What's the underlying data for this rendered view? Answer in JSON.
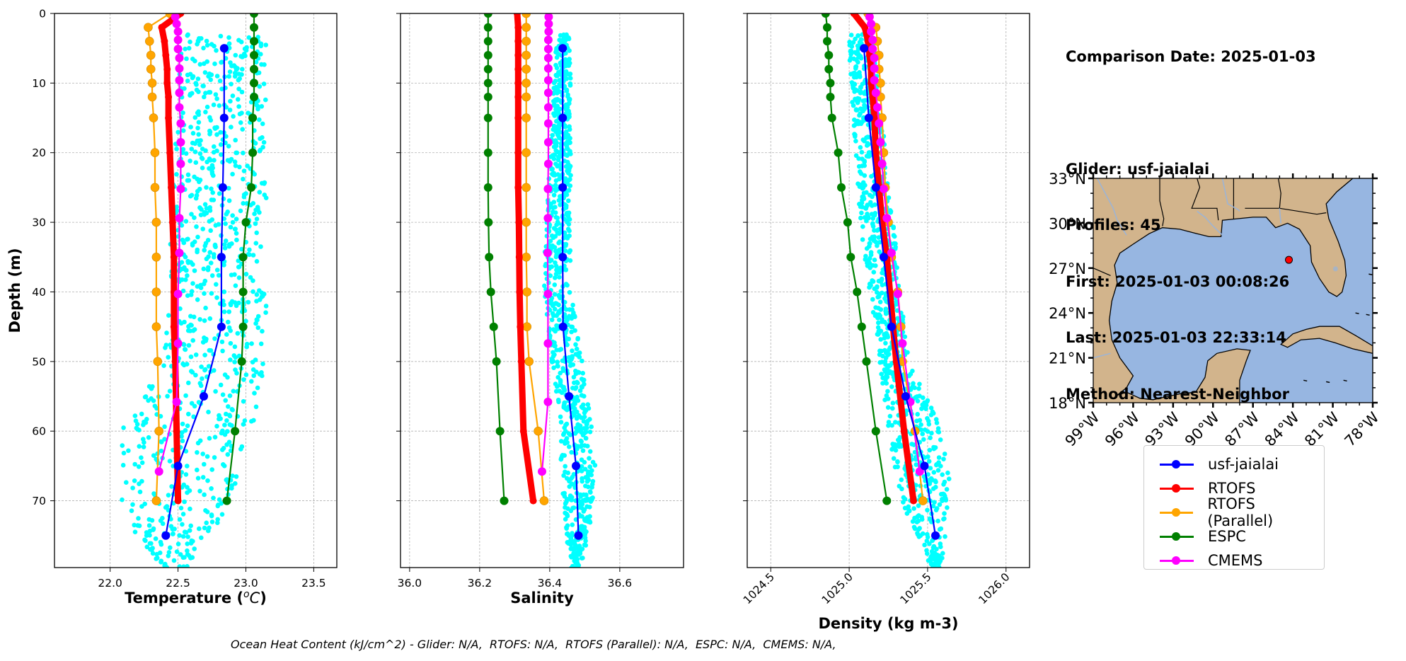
{
  "info_panel": {
    "comparison_date": "Comparison Date: 2025-01-03",
    "glider": "Glider: usf-jaialai",
    "profiles": "Profiles: 45",
    "first": "First: 2025-01-03 00:08:26",
    "last": "Last: 2025-01-03 22:33:14",
    "method": "Method: Nearest-Neighbor"
  },
  "footer": {
    "ohc_text": "Ocean Heat Content (kJ/cm^2) - Glider: N/A,  RTOFS: N/A,  RTOFS (Parallel): N/A,  ESPC: N/A,  CMEMS: N/A,"
  },
  "legend": {
    "placement": "below-map",
    "entries": [
      {
        "label": "usf-jaialai",
        "color": "#0000ff"
      },
      {
        "label": "RTOFS",
        "color": "#ff0000"
      },
      {
        "label": "RTOFS (Parallel)",
        "color": "#ffa500"
      },
      {
        "label": "ESPC",
        "color": "#008000"
      },
      {
        "label": "CMEMS",
        "color": "#ff00ff"
      }
    ]
  },
  "colors": {
    "glider_scatter": "#00ffff",
    "glider": "#0000ff",
    "rtofs": "#ff0000",
    "rtofs_parallel": "#ffa500",
    "espc": "#008000",
    "cmems": "#ff00ff",
    "land": "#d2b48c",
    "ocean": "#97b6e1",
    "grid": "#b0b0b0"
  },
  "chart_data": [
    {
      "type": "line",
      "title": "",
      "xlabel": "Temperature (°C)",
      "ylabel": "Depth (m)",
      "xlim": [
        21.59,
        23.67
      ],
      "ylim": [
        79.6,
        0
      ],
      "xticks": [
        22.0,
        22.5,
        23.0,
        23.5
      ],
      "xtick_labels": [
        "22.0",
        "22.5",
        "23.0",
        "23.5"
      ],
      "yticks": [
        0,
        10,
        20,
        30,
        40,
        50,
        60,
        70
      ],
      "ytick_labels": [
        "0",
        "10",
        "20",
        "30",
        "40",
        "50",
        "60",
        "70"
      ],
      "grid": true,
      "scatter": {
        "name": "usf-jaialai profiles",
        "xrange_by_depth": [
          [
            3,
            22.52,
            23.15
          ],
          [
            50,
            22.4,
            23.15
          ],
          [
            60,
            22.08,
            23.05
          ],
          [
            72,
            22.08,
            22.85
          ],
          [
            80,
            22.4,
            22.55
          ]
        ]
      },
      "series": [
        {
          "name": "usf-jaialai",
          "key": "glider",
          "depth": [
            5,
            15,
            25,
            35,
            45,
            55,
            65,
            75
          ],
          "values": [
            22.84,
            22.84,
            22.83,
            22.82,
            22.82,
            22.69,
            22.5,
            22.41
          ]
        },
        {
          "name": "RTOFS",
          "key": "rtofs",
          "depth": [
            0,
            2,
            4,
            6,
            8,
            10,
            12,
            15,
            20,
            25,
            30,
            35,
            40,
            45,
            50,
            60,
            70
          ],
          "values": [
            22.52,
            22.38,
            22.4,
            22.41,
            22.42,
            22.42,
            22.43,
            22.43,
            22.44,
            22.45,
            22.46,
            22.47,
            22.47,
            22.47,
            22.48,
            22.49,
            22.5
          ]
        },
        {
          "name": "RTOFS (Parallel)",
          "key": "rtofs_parallel",
          "depth": [
            0,
            2,
            4,
            6,
            8,
            10,
            12,
            15,
            20,
            25,
            30,
            35,
            40,
            45,
            50,
            60,
            70
          ],
          "values": [
            22.44,
            22.28,
            22.29,
            22.3,
            22.3,
            22.31,
            22.31,
            22.32,
            22.33,
            22.33,
            22.34,
            22.34,
            22.34,
            22.34,
            22.35,
            22.36,
            22.34
          ]
        },
        {
          "name": "ESPC",
          "key": "espc",
          "depth": [
            0,
            2,
            4,
            6,
            8,
            10,
            12,
            15,
            20,
            25,
            30,
            35,
            40,
            45,
            50,
            60,
            70
          ],
          "values": [
            23.06,
            23.06,
            23.06,
            23.06,
            23.06,
            23.06,
            23.06,
            23.05,
            23.05,
            23.04,
            23.0,
            22.98,
            22.98,
            22.98,
            22.97,
            22.92,
            22.86
          ]
        },
        {
          "name": "CMEMS",
          "key": "cmems",
          "depth": [
            0.5,
            1.5,
            2.6,
            3.8,
            5.1,
            6.4,
            7.9,
            9.6,
            11.4,
            13.5,
            15.8,
            18.5,
            21.6,
            25.2,
            29.4,
            34.4,
            40.3,
            47.4,
            55.8,
            65.8
          ],
          "values": [
            22.48,
            22.49,
            22.5,
            22.5,
            22.5,
            22.51,
            22.51,
            22.51,
            22.51,
            22.51,
            22.52,
            22.52,
            22.52,
            22.52,
            22.51,
            22.51,
            22.5,
            22.5,
            22.49,
            22.36
          ]
        }
      ]
    },
    {
      "type": "line",
      "title": "",
      "xlabel": "Salinity",
      "ylabel": "",
      "xlim": [
        35.974,
        36.782
      ],
      "ylim": [
        79.6,
        0
      ],
      "xticks": [
        36.0,
        36.2,
        36.4,
        36.6
      ],
      "xtick_labels": [
        "36.0",
        "36.2",
        "36.4",
        "36.6"
      ],
      "yticks": [
        0,
        10,
        20,
        30,
        40,
        50,
        60,
        70
      ],
      "grid": true,
      "scatter": {
        "name": "usf-jaialai profiles",
        "xrange_by_depth": [
          [
            3,
            36.42,
            36.46
          ],
          [
            40,
            36.38,
            36.46
          ],
          [
            55,
            36.42,
            36.51
          ],
          [
            65,
            36.43,
            36.53
          ],
          [
            72,
            36.44,
            36.52
          ],
          [
            80,
            36.46,
            36.49
          ]
        ]
      },
      "series": [
        {
          "name": "usf-jaialai",
          "key": "glider",
          "depth": [
            5,
            15,
            25,
            35,
            45,
            55,
            65,
            75
          ],
          "values": [
            36.437,
            36.437,
            36.437,
            36.437,
            36.438,
            36.455,
            36.475,
            36.482
          ]
        },
        {
          "name": "RTOFS",
          "key": "rtofs",
          "depth": [
            0,
            2,
            4,
            6,
            8,
            10,
            12,
            15,
            20,
            25,
            30,
            35,
            40,
            45,
            50,
            60,
            70
          ],
          "values": [
            36.307,
            36.31,
            36.31,
            36.31,
            36.31,
            36.31,
            36.31,
            36.31,
            36.31,
            36.31,
            36.312,
            36.313,
            36.314,
            36.316,
            36.319,
            36.325,
            36.353
          ]
        },
        {
          "name": "RTOFS (Parallel)",
          "key": "rtofs_parallel",
          "depth": [
            0,
            2,
            4,
            6,
            8,
            10,
            12,
            15,
            20,
            25,
            30,
            35,
            40,
            45,
            50,
            60,
            70
          ],
          "values": [
            36.333,
            36.333,
            36.333,
            36.333,
            36.333,
            36.333,
            36.333,
            36.333,
            36.333,
            36.333,
            36.333,
            36.333,
            36.335,
            36.335,
            36.341,
            36.367,
            36.384
          ]
        },
        {
          "name": "ESPC",
          "key": "espc",
          "depth": [
            0,
            2,
            4,
            6,
            8,
            10,
            12,
            15,
            20,
            25,
            30,
            35,
            40,
            45,
            50,
            60,
            70
          ],
          "values": [
            36.224,
            36.224,
            36.224,
            36.224,
            36.224,
            36.224,
            36.224,
            36.224,
            36.224,
            36.224,
            36.225,
            36.227,
            36.232,
            36.24,
            36.248,
            36.258,
            36.27
          ]
        },
        {
          "name": "CMEMS",
          "key": "cmems",
          "depth": [
            0.5,
            1.5,
            2.6,
            3.8,
            5.1,
            6.4,
            7.9,
            9.6,
            11.4,
            13.5,
            15.8,
            18.5,
            21.6,
            25.2,
            29.4,
            34.4,
            40.3,
            47.4,
            55.8,
            65.8
          ],
          "values": [
            36.397,
            36.397,
            36.397,
            36.396,
            36.396,
            36.396,
            36.396,
            36.396,
            36.396,
            36.396,
            36.396,
            36.396,
            36.396,
            36.395,
            36.395,
            36.394,
            36.395,
            36.395,
            36.395,
            36.378
          ]
        }
      ]
    },
    {
      "type": "line",
      "title": "",
      "xlabel": "Density (kg m-3)",
      "ylabel": "",
      "xlim": [
        1024.35,
        1026.15
      ],
      "ylim": [
        79.6,
        0
      ],
      "xticks": [
        1024.5,
        1025.0,
        1025.5,
        1026.0
      ],
      "xtick_labels": [
        "1024.5",
        "1025.0",
        "1025.5",
        "1026.0"
      ],
      "yticks": [
        0,
        10,
        20,
        30,
        40,
        50,
        60,
        70
      ],
      "grid": true,
      "scatter": {
        "name": "usf-jaialai profiles",
        "xrange_by_depth": [
          [
            3,
            1024.99,
            1025.15
          ],
          [
            30,
            1025.07,
            1025.28
          ],
          [
            50,
            1025.19,
            1025.38
          ],
          [
            60,
            1025.25,
            1025.6
          ],
          [
            70,
            1025.33,
            1025.66
          ],
          [
            80,
            1025.53,
            1025.58
          ]
        ]
      },
      "series": [
        {
          "name": "usf-jaialai",
          "key": "glider",
          "depth": [
            5,
            15,
            25,
            35,
            45,
            55,
            65,
            75
          ],
          "values": [
            1025.095,
            1025.125,
            1025.17,
            1025.22,
            1025.27,
            1025.36,
            1025.48,
            1025.55
          ]
        },
        {
          "name": "RTOFS",
          "key": "rtofs",
          "depth": [
            0,
            2,
            4,
            6,
            8,
            10,
            12,
            15,
            20,
            25,
            30,
            35,
            40,
            45,
            50,
            60,
            70
          ],
          "values": [
            1025.03,
            1025.1,
            1025.12,
            1025.13,
            1025.14,
            1025.14,
            1025.15,
            1025.16,
            1025.17,
            1025.19,
            1025.21,
            1025.24,
            1025.26,
            1025.28,
            1025.3,
            1025.35,
            1025.41
          ]
        },
        {
          "name": "RTOFS (Parallel)",
          "key": "rtofs_parallel",
          "depth": [
            0,
            2,
            4,
            6,
            8,
            10,
            12,
            15,
            20,
            25,
            30,
            35,
            40,
            45,
            50,
            60,
            70
          ],
          "values": [
            1025.12,
            1025.17,
            1025.18,
            1025.19,
            1025.19,
            1025.2,
            1025.2,
            1025.21,
            1025.22,
            1025.23,
            1025.25,
            1025.27,
            1025.31,
            1025.33,
            1025.34,
            1025.42,
            1025.47
          ]
        },
        {
          "name": "ESPC",
          "key": "espc",
          "depth": [
            0,
            2,
            4,
            6,
            8,
            10,
            12,
            15,
            20,
            25,
            30,
            35,
            40,
            45,
            50,
            60,
            70
          ],
          "values": [
            1024.85,
            1024.86,
            1024.86,
            1024.87,
            1024.87,
            1024.88,
            1024.88,
            1024.89,
            1024.93,
            1024.95,
            1024.99,
            1025.01,
            1025.05,
            1025.08,
            1025.11,
            1025.17,
            1025.24
          ]
        },
        {
          "name": "CMEMS",
          "key": "cmems",
          "depth": [
            0.5,
            1.5,
            2.6,
            3.8,
            5.1,
            6.4,
            7.9,
            9.6,
            11.4,
            13.5,
            15.8,
            18.5,
            21.6,
            25.2,
            29.4,
            34.4,
            40.3,
            47.4,
            55.8,
            65.8
          ],
          "values": [
            1025.13,
            1025.14,
            1025.14,
            1025.15,
            1025.15,
            1025.16,
            1025.16,
            1025.16,
            1025.17,
            1025.18,
            1025.19,
            1025.2,
            1025.21,
            1025.22,
            1025.24,
            1025.27,
            1025.31,
            1025.34,
            1025.39,
            1025.45
          ]
        }
      ]
    },
    {
      "type": "map",
      "title": "",
      "region": "Gulf of Mexico",
      "lon_range": [
        -99,
        -78
      ],
      "lat_range": [
        18,
        33
      ],
      "xticks": [
        -99,
        -96,
        -93,
        -90,
        -87,
        -84,
        -81,
        -78
      ],
      "xtick_labels": [
        "99°W",
        "96°W",
        "93°W",
        "90°W",
        "87°W",
        "84°W",
        "81°W",
        "78°W"
      ],
      "yticks": [
        18,
        21,
        24,
        27,
        30,
        33
      ],
      "ytick_labels": [
        "18°N",
        "21°N",
        "24°N",
        "27°N",
        "30°N",
        "33°N"
      ],
      "glider_location": {
        "lon": -84.3,
        "lat": 27.55,
        "color": "#ff0000"
      }
    }
  ]
}
